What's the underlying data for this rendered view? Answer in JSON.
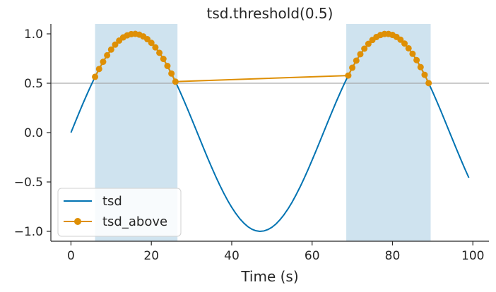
{
  "chart_data": {
    "type": "line",
    "title": "tsd.threshold(0.5)",
    "xlabel": "Time (s)",
    "ylabel": "",
    "xlim": [
      -5,
      104
    ],
    "ylim": [
      -1.1,
      1.1
    ],
    "xticks": [
      0,
      20,
      40,
      60,
      80,
      100
    ],
    "xtick_labels": [
      "0",
      "20",
      "40",
      "60",
      "80",
      "100"
    ],
    "yticks": [
      1.0,
      0.5,
      0.0,
      -0.5,
      -1.0
    ],
    "ytick_labels": [
      "1.0",
      "0.5",
      "0.0",
      "−0.5",
      "−1.0"
    ],
    "grid": false,
    "legend_position": "lower-left",
    "threshold": {
      "y": 0.5,
      "color": "#999999"
    },
    "shaded_intervals": [
      {
        "start": 6,
        "end": 26.5,
        "color": "#cfe3ef"
      },
      {
        "start": 68.5,
        "end": 89.5,
        "color": "#cfe3ef"
      }
    ],
    "series": [
      {
        "name": "tsd",
        "color": "#0173b2",
        "marker": "none",
        "x": [
          0,
          1,
          2,
          3,
          4,
          5,
          6,
          7,
          8,
          9,
          10,
          11,
          12,
          13,
          14,
          15,
          16,
          17,
          18,
          19,
          20,
          21,
          22,
          23,
          24,
          25,
          26,
          27,
          28,
          29,
          30,
          31,
          32,
          33,
          34,
          35,
          36,
          37,
          38,
          39,
          40,
          41,
          42,
          43,
          44,
          45,
          46,
          47,
          48,
          49,
          50,
          51,
          52,
          53,
          54,
          55,
          56,
          57,
          58,
          59,
          60,
          61,
          62,
          63,
          64,
          65,
          66,
          67,
          68,
          69,
          70,
          71,
          72,
          73,
          74,
          75,
          76,
          77,
          78,
          79,
          80,
          81,
          82,
          83,
          84,
          85,
          86,
          87,
          88,
          89,
          90,
          91,
          92,
          93,
          94,
          95,
          96,
          97,
          98,
          99
        ],
        "y": [
          0.0,
          0.1,
          0.199,
          0.296,
          0.389,
          0.479,
          0.565,
          0.644,
          0.717,
          0.783,
          0.841,
          0.891,
          0.932,
          0.964,
          0.985,
          0.997,
          1.0,
          0.992,
          0.974,
          0.946,
          0.909,
          0.863,
          0.808,
          0.746,
          0.675,
          0.598,
          0.516,
          0.427,
          0.335,
          0.239,
          0.141,
          0.042,
          -0.058,
          -0.158,
          -0.256,
          -0.351,
          -0.443,
          -0.53,
          -0.612,
          -0.688,
          -0.757,
          -0.818,
          -0.872,
          -0.916,
          -0.952,
          -0.978,
          -0.994,
          -1.0,
          -0.996,
          -0.982,
          -0.959,
          -0.926,
          -0.883,
          -0.832,
          -0.773,
          -0.706,
          -0.631,
          -0.551,
          -0.465,
          -0.374,
          -0.279,
          -0.182,
          -0.083,
          0.017,
          0.117,
          0.215,
          0.312,
          0.405,
          0.494,
          0.578,
          0.657,
          0.729,
          0.794,
          0.85,
          0.899,
          0.938,
          0.968,
          0.988,
          0.999,
          0.999,
          0.989,
          0.969,
          0.941,
          0.902,
          0.854,
          0.798,
          0.734,
          0.663,
          0.585,
          0.501,
          0.412,
          0.319,
          0.223,
          0.124,
          0.024,
          -0.075,
          -0.174,
          -0.271,
          -0.366,
          -0.457
        ]
      },
      {
        "name": "tsd_above",
        "color": "#de8f05",
        "marker": "circle",
        "x": [
          6,
          7,
          8,
          9,
          10,
          11,
          12,
          13,
          14,
          15,
          16,
          17,
          18,
          19,
          20,
          21,
          22,
          23,
          24,
          25,
          26,
          69,
          70,
          71,
          72,
          73,
          74,
          75,
          76,
          77,
          78,
          79,
          80,
          81,
          82,
          83,
          84,
          85,
          86,
          87,
          88,
          89
        ],
        "y": [
          0.565,
          0.644,
          0.717,
          0.783,
          0.841,
          0.891,
          0.932,
          0.964,
          0.985,
          0.997,
          1.0,
          0.992,
          0.974,
          0.946,
          0.909,
          0.863,
          0.808,
          0.746,
          0.675,
          0.598,
          0.516,
          0.578,
          0.657,
          0.729,
          0.794,
          0.85,
          0.899,
          0.938,
          0.968,
          0.988,
          0.999,
          0.999,
          0.989,
          0.969,
          0.941,
          0.902,
          0.854,
          0.798,
          0.734,
          0.663,
          0.585,
          0.501
        ]
      }
    ]
  }
}
